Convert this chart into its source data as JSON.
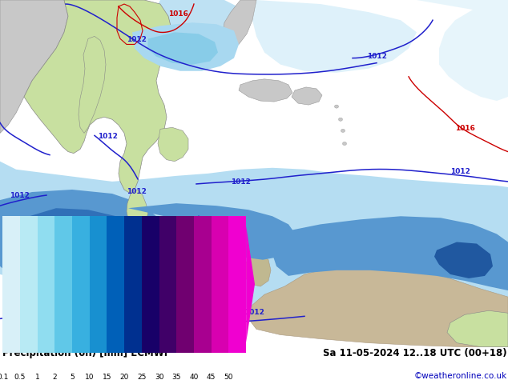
{
  "title_left": "Precipitation (6h) [mm] ECMWF",
  "title_right": "Sa 11-05-2024 12..18 UTC (00+18)",
  "credit": "©weatheronline.co.uk",
  "colorbar_levels": [
    "0.1",
    "0.5",
    "1",
    "2",
    "5",
    "10",
    "15",
    "20",
    "25",
    "30",
    "35",
    "40",
    "45",
    "50"
  ],
  "colorbar_colors": [
    "#d8f0f8",
    "#b8eaf4",
    "#90ddf0",
    "#60c8e8",
    "#38b0e0",
    "#1890d0",
    "#0060b8",
    "#003090",
    "#180068",
    "#400068",
    "#700070",
    "#a80090",
    "#d800b0",
    "#f000d0"
  ],
  "ocean_bg": "#d8eef8",
  "land_green": "#c8e0a0",
  "land_gray": "#c8c8c8",
  "land_gray2": "#b8c0c0",
  "precip_vlight": "#d0ecf8",
  "precip_light": "#a8d8f0",
  "precip_med": "#70bce0",
  "precip_blue": "#4090c8",
  "precip_dblue": "#1858a8",
  "precip_vdblue": "#0030808",
  "precip_navy": "#001878",
  "precip_purple": "#800090",
  "precip_magenta": "#c000b0",
  "isobar_blue": "#2020cc",
  "isobar_red": "#cc0000",
  "text_color": "#000000",
  "credit_color": "#0000bb",
  "figsize": [
    6.34,
    4.9
  ],
  "dpi": 100
}
